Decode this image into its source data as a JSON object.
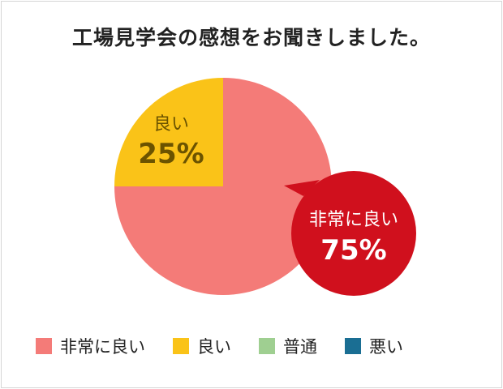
{
  "chart_data": {
    "type": "pie",
    "title": "工場見学会の感想をお聞きしました。",
    "categories": [
      "非常に良い",
      "良い",
      "普通",
      "悪い"
    ],
    "values": [
      75,
      25,
      0,
      0
    ],
    "value_labels": [
      "75%",
      "25%",
      "",
      ""
    ],
    "colors": [
      "#f47b78",
      "#fac318",
      "#9fcf91",
      "#1a6e93"
    ],
    "callout_color": "#d0101d",
    "label_text_colors": [
      "#ffffff",
      "#6b5300"
    ],
    "legend": {
      "position": "bottom",
      "entries": [
        "非常に良い",
        "良い",
        "普通",
        "悪い"
      ]
    }
  }
}
